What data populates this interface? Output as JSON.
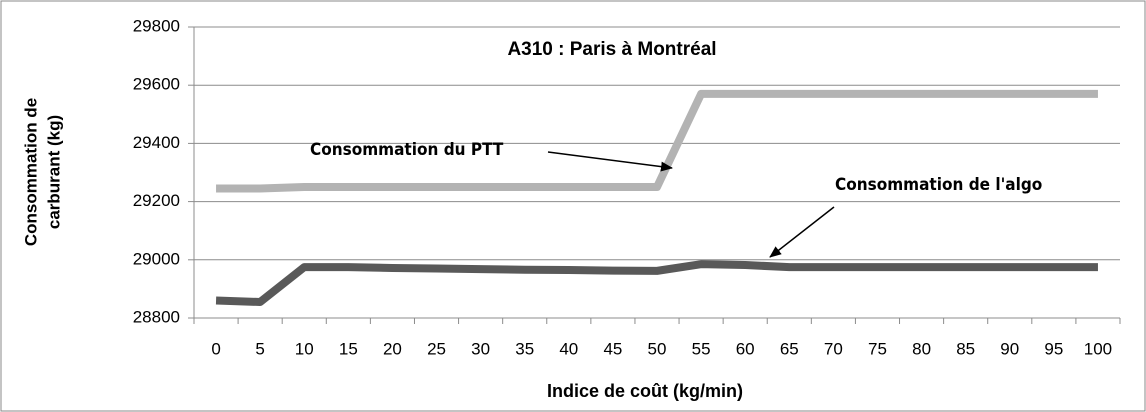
{
  "chart_data": {
    "type": "line",
    "title": "A310 : Paris à Montréal",
    "x_label": "Indice de coût (kg/min)",
    "y_label": [
      "Consommation de",
      "carburant (kg)"
    ],
    "categories": [
      "0",
      "5",
      "10",
      "15",
      "20",
      "25",
      "30",
      "35",
      "40",
      "45",
      "50",
      "55",
      "60",
      "65",
      "70",
      "75",
      "80",
      "85",
      "90",
      "95",
      "100"
    ],
    "series": [
      {
        "name": "Consommation du PTT",
        "color": "#b3b3b3",
        "values": [
          29245,
          29245,
          29250,
          29250,
          29250,
          29250,
          29250,
          29250,
          29250,
          29250,
          29250,
          29570,
          29570,
          29570,
          29570,
          29570,
          29570,
          29570,
          29570,
          29570,
          29570
        ]
      },
      {
        "name": "Consommation de l'algo",
        "color": "#595959",
        "values": [
          28860,
          28855,
          28975,
          28975,
          28972,
          28970,
          28968,
          28966,
          28965,
          28963,
          28962,
          28985,
          28982,
          28975,
          28975,
          28975,
          28975,
          28975,
          28975,
          28975,
          28975
        ]
      }
    ],
    "ylim": [
      28800,
      29800
    ],
    "yticks": [
      28800,
      29000,
      29200,
      29400,
      29600,
      29800
    ],
    "grid": true
  }
}
